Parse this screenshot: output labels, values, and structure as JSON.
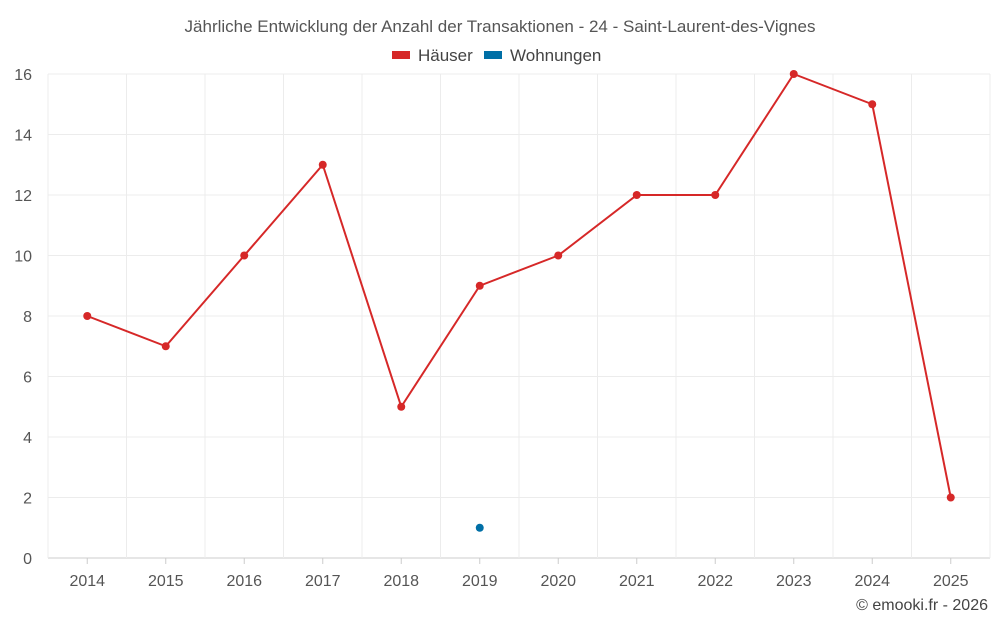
{
  "chart_data": {
    "type": "line",
    "title": "Jährliche Entwicklung der Anzahl der Transaktionen - 24 - Saint-Laurent-des-Vignes",
    "categories": [
      "2014",
      "2015",
      "2016",
      "2017",
      "2018",
      "2019",
      "2020",
      "2021",
      "2022",
      "2023",
      "2024",
      "2025"
    ],
    "ylim": [
      0,
      16
    ],
    "yticks": [
      0,
      2,
      4,
      6,
      8,
      10,
      12,
      14,
      16
    ],
    "grid": true,
    "legend_position": "top-center",
    "series": [
      {
        "name": "Häuser",
        "color": "#d62828",
        "values": [
          8,
          7,
          10,
          13,
          5,
          9,
          10,
          12,
          12,
          16,
          15,
          2
        ]
      },
      {
        "name": "Wohnungen",
        "color": "#006fa6",
        "values": [
          null,
          null,
          null,
          null,
          null,
          1,
          null,
          null,
          null,
          null,
          null,
          null
        ]
      }
    ]
  },
  "credit": "© emooki.fr - 2026"
}
